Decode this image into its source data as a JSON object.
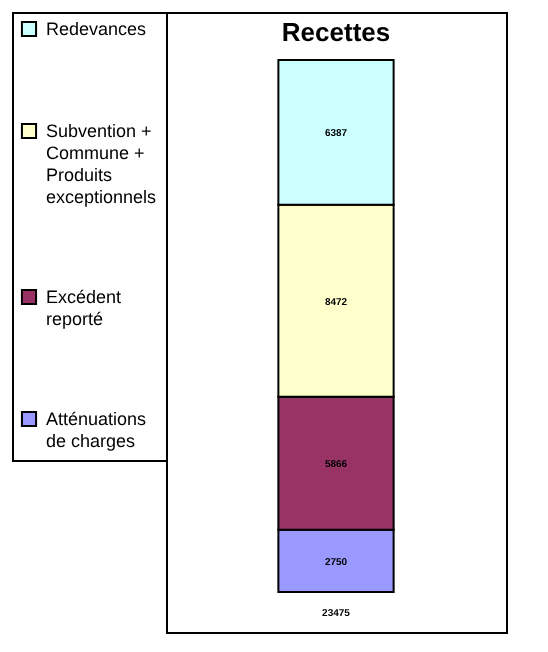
{
  "chart_data": {
    "type": "bar",
    "title": "Recettes",
    "categories": [
      null
    ],
    "stacked": true,
    "data_labels": true,
    "totals": [
      "23475"
    ],
    "legend": "left",
    "series": [
      {
        "name": "Atténuations de charges",
        "color": "#9999ff",
        "values": [
          2750
        ]
      },
      {
        "name": "Excédent reporté",
        "color": "#993366",
        "values": [
          5866
        ]
      },
      {
        "name": "Subvention + Commune + Produits exceptionnels",
        "color": "#ffffcc",
        "values": [
          8472
        ]
      },
      {
        "name": "Redevances",
        "color": "#ccffff",
        "values": [
          6387
        ]
      }
    ]
  }
}
